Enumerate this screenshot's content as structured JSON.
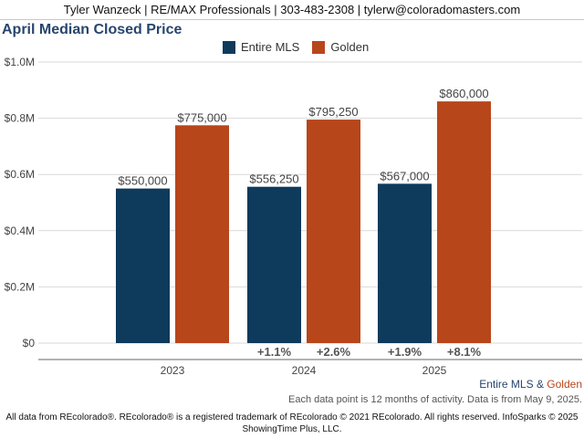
{
  "banner": {
    "text": "Tyler Wanzeck | RE/MAX Professionals | 303-483-2308 | tylerw@coloradomasters.com"
  },
  "colors": {
    "entire_mls": "#0e3a5c",
    "golden": "#b8461b",
    "title": "#27456e",
    "gridline": "#d9d9d9"
  },
  "chart_data": {
    "type": "bar",
    "title": "April Median Closed Price",
    "categories": [
      "2023",
      "2024",
      "2025"
    ],
    "series": [
      {
        "name": "Entire MLS",
        "values": [
          550000,
          556250,
          567000
        ],
        "labels": [
          "$550,000",
          "$556,250",
          "$567,000"
        ]
      },
      {
        "name": "Golden",
        "values": [
          775000,
          795250,
          860000
        ],
        "labels": [
          "$775,000",
          "$795,250",
          "$860,000"
        ]
      }
    ],
    "ylim": [
      0,
      1000000
    ],
    "yticks": [
      0,
      200000,
      400000,
      600000,
      800000,
      1000000
    ],
    "ytick_labels": [
      "$0",
      "$0.2M",
      "$0.4M",
      "$0.6M",
      "$0.8M",
      "$1.0M"
    ],
    "change_annotations": [
      null,
      {
        "entire_mls": "+1.1%",
        "golden": "+2.6%"
      },
      {
        "entire_mls": "+1.9%",
        "golden": "+8.1%"
      }
    ],
    "grid": true,
    "legend_position": "top-center"
  },
  "bottom_legend": {
    "entire_mls": "Entire MLS",
    "amp": "&",
    "golden": "Golden"
  },
  "note": "Each data point is 12 months of activity. Data is from May 9, 2025.",
  "footer": {
    "line1": "All data from REcolorado®. REcolorado® is a registered trademark of REcolorado © 2021 REcolorado. All rights reserved. InfoSparks © 2025",
    "line2": "ShowingTime Plus, LLC."
  }
}
